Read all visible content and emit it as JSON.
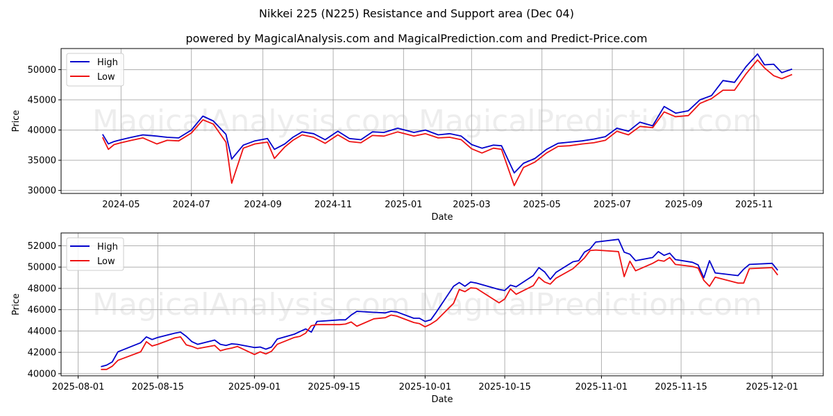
{
  "titles": {
    "main": "Nikkei 225 (N225) Resistance and Support area (Dec 04)",
    "sub": "powered by MagicalAnalysis.com and MagicalPrediction.com and Predict-Price.com"
  },
  "watermarks": [
    "MagicalAnalysis.com",
    "MagicalPrediction.com"
  ],
  "colors": {
    "high": "#0000cc",
    "low": "#ee1111",
    "grid": "#b0b0b0"
  },
  "chart_data": [
    {
      "type": "line",
      "title": "Nikkei 225 (N225) Resistance and Support area (Dec 04)",
      "xlabel": "Date",
      "ylabel": "Price",
      "ylim": [
        29500,
        53500
      ],
      "yticks": [
        30000,
        35000,
        40000,
        45000,
        50000
      ],
      "xticks": [
        "2024-05",
        "2024-07",
        "2024-09",
        "2024-11",
        "2025-01",
        "2025-03",
        "2025-05",
        "2025-07",
        "2025-09",
        "2025-11"
      ],
      "grid": true,
      "legend_position": "upper left",
      "x": [
        "2024-04-15",
        "2024-04-20",
        "2024-04-25",
        "2024-05-01",
        "2024-05-10",
        "2024-05-20",
        "2024-06-01",
        "2024-06-10",
        "2024-06-20",
        "2024-07-01",
        "2024-07-11",
        "2024-07-20",
        "2024-07-31",
        "2024-08-05",
        "2024-08-15",
        "2024-08-25",
        "2024-09-05",
        "2024-09-11",
        "2024-09-20",
        "2024-09-27",
        "2024-10-05",
        "2024-10-15",
        "2024-10-25",
        "2024-11-05",
        "2024-11-15",
        "2024-11-25",
        "2024-12-05",
        "2024-12-15",
        "2024-12-27",
        "2025-01-10",
        "2025-01-20",
        "2025-01-31",
        "2025-02-10",
        "2025-02-20",
        "2025-03-01",
        "2025-03-10",
        "2025-03-20",
        "2025-03-27",
        "2025-04-07",
        "2025-04-15",
        "2025-04-25",
        "2025-05-05",
        "2025-05-15",
        "2025-05-25",
        "2025-06-05",
        "2025-06-15",
        "2025-06-25",
        "2025-07-05",
        "2025-07-15",
        "2025-07-25",
        "2025-08-05",
        "2025-08-15",
        "2025-08-25",
        "2025-09-05",
        "2025-09-15",
        "2025-09-25",
        "2025-10-05",
        "2025-10-15",
        "2025-10-25",
        "2025-11-04",
        "2025-11-10",
        "2025-11-18",
        "2025-11-25",
        "2025-12-04"
      ],
      "series": [
        {
          "name": "High",
          "values": [
            39300,
            37700,
            38100,
            38400,
            38800,
            39200,
            39000,
            38800,
            38700,
            40000,
            42300,
            41500,
            39300,
            35200,
            37500,
            38200,
            38600,
            36800,
            37700,
            38800,
            39700,
            39400,
            38400,
            39800,
            38600,
            38400,
            39700,
            39600,
            40300,
            39600,
            40000,
            39200,
            39400,
            39000,
            37600,
            37000,
            37500,
            37400,
            32900,
            34500,
            35300,
            36800,
            37800,
            38000,
            38200,
            38500,
            38900,
            40300,
            39800,
            41300,
            40700,
            43900,
            42800,
            43200,
            45000,
            45700,
            48200,
            47900,
            50500,
            52600,
            50800,
            50900,
            49500,
            50100
          ]
        },
        {
          "name": "Low",
          "values": [
            38800,
            36800,
            37600,
            37900,
            38300,
            38700,
            37700,
            38300,
            38200,
            39500,
            41700,
            41000,
            38000,
            31200,
            37000,
            37700,
            38000,
            35300,
            37200,
            38300,
            39200,
            38800,
            37800,
            39200,
            38100,
            37900,
            39100,
            39000,
            39700,
            39000,
            39400,
            38700,
            38800,
            38400,
            36900,
            36200,
            37000,
            36800,
            30800,
            33800,
            34700,
            36200,
            37300,
            37400,
            37700,
            37900,
            38300,
            39800,
            39200,
            40600,
            40400,
            43000,
            42200,
            42400,
            44400,
            45200,
            46600,
            46600,
            49300,
            51600,
            50300,
            49000,
            48500,
            49200
          ]
        }
      ]
    },
    {
      "type": "line",
      "title": "",
      "xlabel": "Date",
      "ylabel": "Price",
      "ylim": [
        39800,
        53200
      ],
      "yticks": [
        40000,
        42000,
        44000,
        46000,
        48000,
        50000,
        52000
      ],
      "xticks": [
        "2025-08-01",
        "2025-08-15",
        "2025-09-01",
        "2025-09-15",
        "2025-10-01",
        "2025-10-15",
        "2025-11-01",
        "2025-11-15",
        "2025-12-01"
      ],
      "grid": true,
      "legend_position": "upper left",
      "x": [
        "2025-08-05",
        "2025-08-06",
        "2025-08-07",
        "2025-08-08",
        "2025-08-12",
        "2025-08-13",
        "2025-08-14",
        "2025-08-15",
        "2025-08-18",
        "2025-08-19",
        "2025-08-20",
        "2025-08-21",
        "2025-08-22",
        "2025-08-25",
        "2025-08-26",
        "2025-08-27",
        "2025-08-28",
        "2025-08-29",
        "2025-09-01",
        "2025-09-02",
        "2025-09-03",
        "2025-09-04",
        "2025-09-05",
        "2025-09-08",
        "2025-09-09",
        "2025-09-10",
        "2025-09-11",
        "2025-09-12",
        "2025-09-16",
        "2025-09-17",
        "2025-09-18",
        "2025-09-19",
        "2025-09-22",
        "2025-09-24",
        "2025-09-25",
        "2025-09-26",
        "2025-09-29",
        "2025-09-30",
        "2025-10-01",
        "2025-10-02",
        "2025-10-03",
        "2025-10-06",
        "2025-10-07",
        "2025-10-08",
        "2025-10-09",
        "2025-10-10",
        "2025-10-14",
        "2025-10-15",
        "2025-10-16",
        "2025-10-17",
        "2025-10-20",
        "2025-10-21",
        "2025-10-22",
        "2025-10-23",
        "2025-10-24",
        "2025-10-27",
        "2025-10-28",
        "2025-10-29",
        "2025-10-30",
        "2025-10-31",
        "2025-11-04",
        "2025-11-05",
        "2025-11-06",
        "2025-11-07",
        "2025-11-10",
        "2025-11-11",
        "2025-11-12",
        "2025-11-13",
        "2025-11-14",
        "2025-11-17",
        "2025-11-18",
        "2025-11-19",
        "2025-11-20",
        "2025-11-21",
        "2025-11-25",
        "2025-11-26",
        "2025-11-27",
        "2025-12-01",
        "2025-12-02"
      ],
      "series": [
        {
          "name": "High",
          "values": [
            40650,
            40800,
            41100,
            42050,
            42900,
            43450,
            43200,
            43400,
            43800,
            43900,
            43500,
            43000,
            42750,
            43150,
            42750,
            42650,
            42800,
            42750,
            42450,
            42500,
            42300,
            42500,
            43250,
            43700,
            43950,
            44200,
            43900,
            44900,
            45050,
            45050,
            45500,
            45850,
            45750,
            45700,
            45850,
            45800,
            45200,
            45200,
            44900,
            45050,
            45800,
            48200,
            48550,
            48200,
            48600,
            48500,
            47900,
            47800,
            48300,
            48150,
            49200,
            49950,
            49550,
            48850,
            49500,
            50500,
            50600,
            51400,
            51700,
            52350,
            52600,
            51400,
            51200,
            50600,
            50900,
            51450,
            51100,
            51300,
            50700,
            50450,
            50200,
            49000,
            50600,
            49450,
            49200,
            49800,
            50250,
            50350,
            49700
          ]
        },
        {
          "name": "Low",
          "values": [
            40400,
            40400,
            40700,
            41250,
            42050,
            43000,
            42600,
            42750,
            43350,
            43450,
            42700,
            42550,
            42350,
            42650,
            42150,
            42300,
            42400,
            42550,
            41800,
            42050,
            41850,
            42100,
            42750,
            43400,
            43500,
            43800,
            44500,
            44600,
            44600,
            44650,
            44850,
            44450,
            45150,
            45250,
            45500,
            45400,
            44800,
            44700,
            44400,
            44650,
            45000,
            46600,
            47900,
            47700,
            48050,
            48000,
            46650,
            47000,
            47950,
            47450,
            48250,
            49050,
            48600,
            48400,
            48950,
            49850,
            50350,
            50850,
            51550,
            51600,
            51450,
            49100,
            50550,
            49650,
            50350,
            50650,
            50550,
            50900,
            50250,
            50050,
            49900,
            48750,
            48200,
            49050,
            48500,
            48500,
            49850,
            49950,
            49250
          ]
        }
      ]
    }
  ],
  "legend": {
    "items": [
      "High",
      "Low"
    ]
  }
}
